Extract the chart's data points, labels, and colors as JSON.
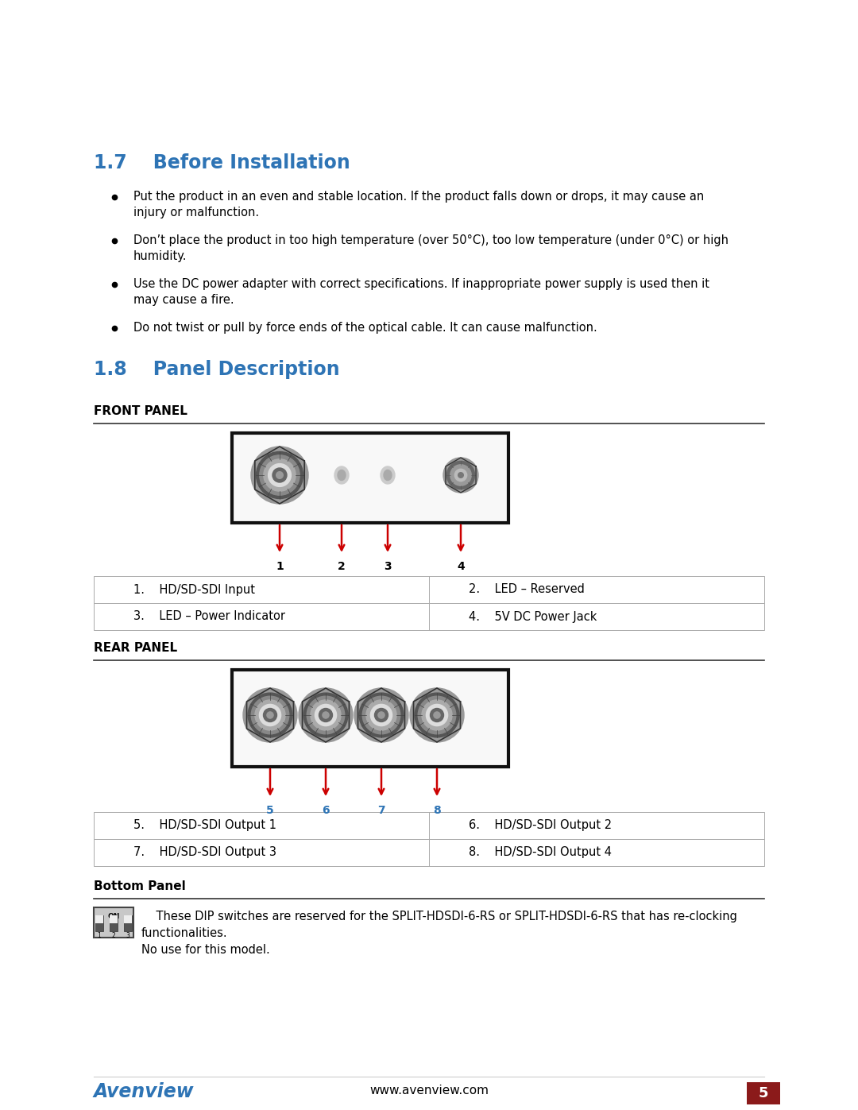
{
  "bg_color": "#ffffff",
  "heading_color": "#2E74B5",
  "text_color": "#000000",
  "section_17_title": "1.7    Before Installation",
  "section_18_title": "1.8    Panel Description",
  "bullets_17": [
    "Put the product in an even and stable location. If the product falls down or drops, it may cause an\ninjury or malfunction.",
    "Don’t place the product in too high temperature (over 50°C), too low temperature (under 0°C) or high\nhumidity.",
    "Use the DC power adapter with correct specifications. If inappropriate power supply is used then it\nmay cause a fire.",
    "Do not twist or pull by force ends of the optical cable. It can cause malfunction."
  ],
  "front_panel_label": "FRONT PANEL",
  "rear_panel_label": "REAR PANEL",
  "bottom_panel_label": "Bottom Panel",
  "front_table": [
    [
      "1.    HD/SD-SDI Input",
      "2.    LED – Reserved"
    ],
    [
      "3.    LED – Power Indicator",
      "4.    5V DC Power Jack"
    ]
  ],
  "rear_table": [
    [
      "5.    HD/SD-SDI Output 1",
      "6.    HD/SD-SDI Output 2"
    ],
    [
      "7.    HD/SD-SDI Output 3",
      "8.    HD/SD-SDI Output 4"
    ]
  ],
  "bottom_text": "    These DIP switches are reserved for the SPLIT-HDSDI-6-RS or SPLIT-HDSDI-6-RS that has re-clocking\nfunctionalities.\nNo use for this model.",
  "footer_url": "www.avenview.com",
  "footer_page": "5",
  "avenview_color": "#2E74B5",
  "footer_bg": "#8B1A1A",
  "red_arrow_color": "#CC0000",
  "label_color_rear": "#2E74B5",
  "label_color_front": "#000000",
  "table_border_color": "#aaaaaa",
  "table_bg_color": "#ffffff",
  "line_color": "#333333"
}
